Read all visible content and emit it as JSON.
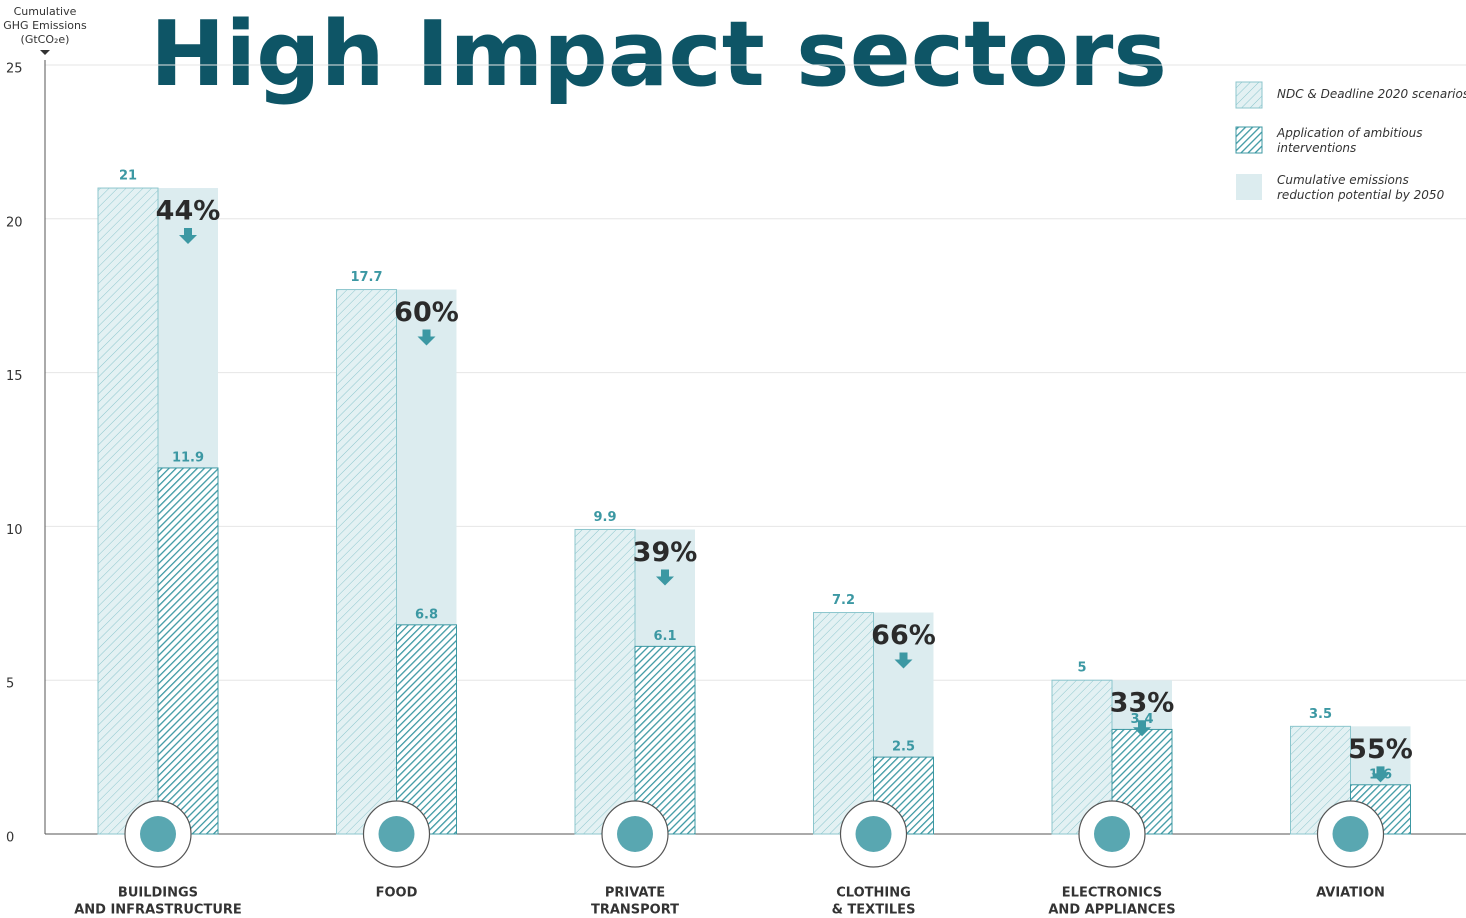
{
  "chart_data": {
    "type": "bar",
    "title": "High Impact sectors",
    "ylabel": [
      "Cumulative",
      "GHG Emissions",
      "(GtCO₂e)"
    ],
    "categories": [
      [
        "BUILDINGS",
        "AND INFRASTRUCTURE"
      ],
      [
        "FOOD"
      ],
      [
        "PRIVATE",
        "TRANSPORT"
      ],
      [
        "CLOTHING",
        "& TEXTILES"
      ],
      [
        "ELECTRONICS",
        "AND APPLIANCES"
      ],
      [
        "AVIATION"
      ]
    ],
    "series": [
      {
        "name": "NDC & Deadline 2020 scenarios",
        "color": "#8cc6cd",
        "values": [
          21,
          17.7,
          9.9,
          7.2,
          5,
          3.5
        ]
      },
      {
        "name": "Application of ambitious interventions",
        "color": "#3c98a3",
        "values": [
          11.9,
          6.8,
          6.1,
          2.5,
          3.4,
          1.6
        ]
      }
    ],
    "reduction": {
      "name": "Cumulative emissions reduction potential by 2050",
      "color": "#dcecef",
      "values": [
        44,
        60,
        39,
        66,
        33,
        55
      ],
      "value_labels": [
        "44%",
        "60%",
        "39%",
        "66%",
        "33%",
        "55%"
      ]
    },
    "ylim": [
      0,
      25
    ],
    "yticks": [
      0,
      5,
      10,
      15,
      20,
      25
    ],
    "grid": true
  }
}
